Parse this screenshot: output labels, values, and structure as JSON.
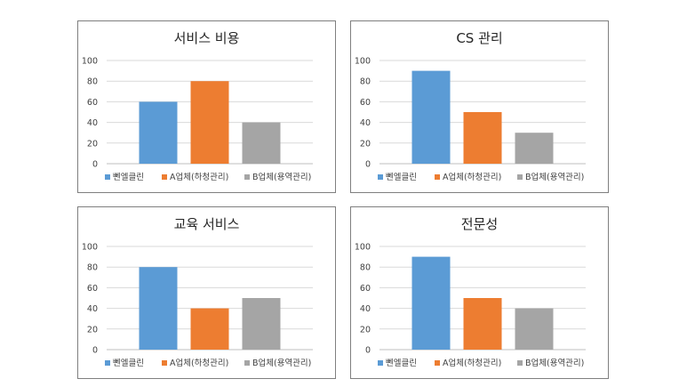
{
  "chart_data": [
    {
      "type": "bar",
      "title": "서비스 비용",
      "categories": [
        "뻰엘클린",
        "A업체(하청관리)",
        "B업체(용역관리)"
      ],
      "values": [
        60,
        80,
        40
      ],
      "ylim": [
        0,
        100
      ],
      "yticks": [
        0,
        20,
        40,
        60,
        80,
        100
      ],
      "grid": true,
      "legend": "bottom",
      "colors": [
        "#5b9bd5",
        "#ed7d31",
        "#a5a5a5"
      ]
    },
    {
      "type": "bar",
      "title": "CS 관리",
      "categories": [
        "뻰엘클린",
        "A업체(하청관리)",
        "B업체(용역관리)"
      ],
      "values": [
        90,
        50,
        30
      ],
      "ylim": [
        0,
        100
      ],
      "yticks": [
        0,
        20,
        40,
        60,
        80,
        100
      ],
      "grid": true,
      "legend": "bottom",
      "colors": [
        "#5b9bd5",
        "#ed7d31",
        "#a5a5a5"
      ]
    },
    {
      "type": "bar",
      "title": "교육 서비스",
      "categories": [
        "뻰엘클린",
        "A업체(하청관리)",
        "B업체(용역관리)"
      ],
      "values": [
        80,
        40,
        50
      ],
      "ylim": [
        0,
        100
      ],
      "yticks": [
        0,
        20,
        40,
        60,
        80,
        100
      ],
      "grid": true,
      "legend": "bottom",
      "colors": [
        "#5b9bd5",
        "#ed7d31",
        "#a5a5a5"
      ]
    },
    {
      "type": "bar",
      "title": "전문성",
      "categories": [
        "뻰엘클린",
        "A업체(하청관리)",
        "B업체(용역관리)"
      ],
      "values": [
        90,
        50,
        40
      ],
      "ylim": [
        0,
        100
      ],
      "yticks": [
        0,
        20,
        40,
        60,
        80,
        100
      ],
      "grid": true,
      "legend": "bottom",
      "colors": [
        "#5b9bd5",
        "#ed7d31",
        "#a5a5a5"
      ]
    }
  ]
}
